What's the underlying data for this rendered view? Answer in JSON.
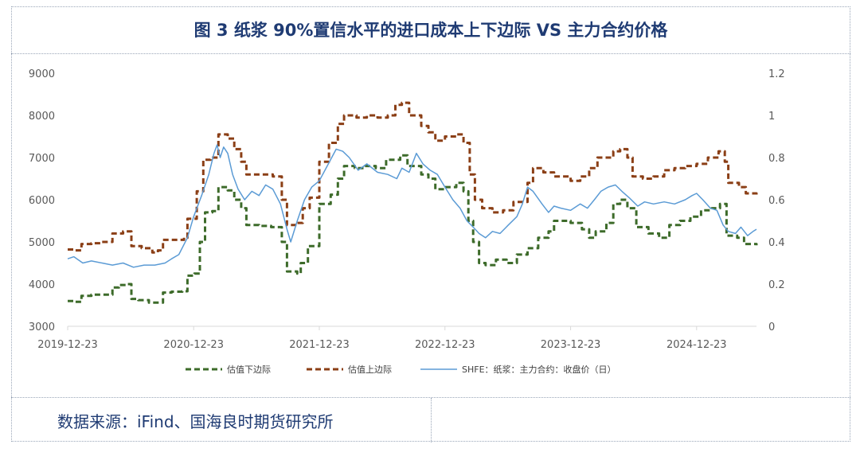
{
  "title": "图 3 纸浆 90%置信水平的进口成本上下边际 VS 主力合约价格",
  "source": "数据来源：iFind、国海良时期货研究所",
  "chart_data": {
    "type": "line",
    "x_tick_labels": [
      "2019-12-23",
      "2020-12-23",
      "2021-12-23",
      "2022-12-23",
      "2023-12-23",
      "2024-12-23"
    ],
    "x_range": [
      "2019-12-23",
      "2025-06-15"
    ],
    "y_left_ticks": [
      "3000",
      "4000",
      "5000",
      "6000",
      "7000",
      "8000",
      "9000"
    ],
    "y_left_range": [
      3000,
      9000
    ],
    "y_right_ticks": [
      "0",
      "0.2",
      "0.4",
      "0.6",
      "0.8",
      "1",
      "1.2"
    ],
    "y_right_range": [
      0,
      1.2
    ],
    "grid": false,
    "legend_position": "bottom",
    "series": [
      {
        "name": "估值下边际",
        "color": "#3d6b2a",
        "style": "dashed",
        "axis": "left",
        "points": [
          [
            "2019-12-23",
            3600
          ],
          [
            "2020-01-10",
            3580
          ],
          [
            "2020-02-01",
            3720
          ],
          [
            "2020-03-01",
            3750
          ],
          [
            "2020-04-01",
            3750
          ],
          [
            "2020-05-01",
            3920
          ],
          [
            "2020-05-20",
            3980
          ],
          [
            "2020-06-15",
            4000
          ],
          [
            "2020-06-25",
            3650
          ],
          [
            "2020-07-15",
            3620
          ],
          [
            "2020-08-15",
            3560
          ],
          [
            "2020-09-15",
            3560
          ],
          [
            "2020-09-25",
            3800
          ],
          [
            "2020-10-20",
            3820
          ],
          [
            "2020-11-20",
            3830
          ],
          [
            "2020-12-05",
            4200
          ],
          [
            "2020-12-25",
            4250
          ],
          [
            "2021-01-10",
            5000
          ],
          [
            "2021-01-25",
            5700
          ],
          [
            "2021-02-15",
            5730
          ],
          [
            "2021-03-05",
            6300
          ],
          [
            "2021-04-01",
            6220
          ],
          [
            "2021-04-20",
            6000
          ],
          [
            "2021-05-10",
            5800
          ],
          [
            "2021-05-25",
            5400
          ],
          [
            "2021-07-01",
            5380
          ],
          [
            "2021-08-05",
            5350
          ],
          [
            "2021-09-05",
            5000
          ],
          [
            "2021-09-20",
            4300
          ],
          [
            "2021-10-20",
            4250
          ],
          [
            "2021-10-30",
            4500
          ],
          [
            "2021-11-20",
            4900
          ],
          [
            "2021-12-23",
            5900
          ],
          [
            "2022-01-25",
            6120
          ],
          [
            "2022-02-15",
            6500
          ],
          [
            "2022-03-05",
            6800
          ],
          [
            "2022-04-05",
            6750
          ],
          [
            "2022-05-05",
            6800
          ],
          [
            "2022-06-05",
            6750
          ],
          [
            "2022-07-05",
            6950
          ],
          [
            "2022-08-15",
            7050
          ],
          [
            "2022-09-05",
            6800
          ],
          [
            "2022-10-15",
            6600
          ],
          [
            "2022-11-05",
            6500
          ],
          [
            "2022-11-25",
            6250
          ],
          [
            "2022-12-23",
            6300
          ],
          [
            "2023-01-25",
            6400
          ],
          [
            "2023-02-15",
            6200
          ],
          [
            "2023-03-01",
            5500
          ],
          [
            "2023-03-15",
            5000
          ],
          [
            "2023-04-01",
            4500
          ],
          [
            "2023-04-20",
            4450
          ],
          [
            "2023-05-20",
            4580
          ],
          [
            "2023-06-20",
            4500
          ],
          [
            "2023-07-20",
            4700
          ],
          [
            "2023-08-20",
            4850
          ],
          [
            "2023-09-20",
            5100
          ],
          [
            "2023-10-20",
            5250
          ],
          [
            "2023-11-05",
            5500
          ],
          [
            "2023-12-23",
            5450
          ],
          [
            "2024-01-25",
            5300
          ],
          [
            "2024-02-15",
            5100
          ],
          [
            "2024-03-05",
            5250
          ],
          [
            "2024-04-05",
            5450
          ],
          [
            "2024-04-25",
            5900
          ],
          [
            "2024-05-15",
            6000
          ],
          [
            "2024-06-05",
            5800
          ],
          [
            "2024-07-01",
            5350
          ],
          [
            "2024-08-05",
            5200
          ],
          [
            "2024-09-05",
            5100
          ],
          [
            "2024-10-05",
            5400
          ],
          [
            "2024-11-05",
            5500
          ],
          [
            "2024-12-05",
            5600
          ],
          [
            "2025-01-05",
            5750
          ],
          [
            "2025-02-05",
            5800
          ],
          [
            "2025-03-01",
            5900
          ],
          [
            "2025-03-20",
            5150
          ],
          [
            "2025-04-20",
            5100
          ],
          [
            "2025-05-10",
            4950
          ],
          [
            "2025-06-15",
            4920
          ]
        ]
      },
      {
        "name": "估值上边际",
        "color": "#8b3f16",
        "style": "dashed",
        "axis": "left",
        "points": [
          [
            "2019-12-23",
            4820
          ],
          [
            "2020-01-10",
            4800
          ],
          [
            "2020-02-01",
            4950
          ],
          [
            "2020-03-01",
            4970
          ],
          [
            "2020-04-01",
            5000
          ],
          [
            "2020-05-01",
            5200
          ],
          [
            "2020-06-01",
            5250
          ],
          [
            "2020-06-15",
            5250
          ],
          [
            "2020-06-25",
            4900
          ],
          [
            "2020-07-25",
            4850
          ],
          [
            "2020-08-25",
            4750
          ],
          [
            "2020-09-10",
            4800
          ],
          [
            "2020-09-25",
            5050
          ],
          [
            "2020-10-25",
            5050
          ],
          [
            "2020-11-25",
            5100
          ],
          [
            "2020-12-05",
            5550
          ],
          [
            "2021-01-01",
            6200
          ],
          [
            "2021-01-20",
            6950
          ],
          [
            "2021-02-10",
            7000
          ],
          [
            "2021-03-05",
            7550
          ],
          [
            "2021-04-01",
            7450
          ],
          [
            "2021-04-20",
            7200
          ],
          [
            "2021-05-10",
            6900
          ],
          [
            "2021-05-25",
            6600
          ],
          [
            "2021-07-01",
            6600
          ],
          [
            "2021-08-10",
            6550
          ],
          [
            "2021-09-05",
            6000
          ],
          [
            "2021-09-20",
            5400
          ],
          [
            "2021-10-20",
            5450
          ],
          [
            "2021-11-05",
            5800
          ],
          [
            "2021-11-25",
            6050
          ],
          [
            "2021-12-23",
            6900
          ],
          [
            "2022-01-20",
            7350
          ],
          [
            "2022-02-15",
            7800
          ],
          [
            "2022-03-05",
            8000
          ],
          [
            "2022-04-10",
            7950
          ],
          [
            "2022-05-10",
            8000
          ],
          [
            "2022-06-10",
            7950
          ],
          [
            "2022-07-10",
            8000
          ],
          [
            "2022-08-01",
            8250
          ],
          [
            "2022-08-20",
            8300
          ],
          [
            "2022-09-10",
            8000
          ],
          [
            "2022-10-15",
            7750
          ],
          [
            "2022-11-05",
            7600
          ],
          [
            "2022-11-25",
            7400
          ],
          [
            "2022-12-23",
            7500
          ],
          [
            "2023-01-25",
            7550
          ],
          [
            "2023-02-15",
            7350
          ],
          [
            "2023-03-05",
            6600
          ],
          [
            "2023-03-20",
            6000
          ],
          [
            "2023-04-10",
            5800
          ],
          [
            "2023-05-10",
            5700
          ],
          [
            "2023-06-10",
            5750
          ],
          [
            "2023-07-10",
            5950
          ],
          [
            "2023-08-20",
            6400
          ],
          [
            "2023-09-05",
            6750
          ],
          [
            "2023-10-05",
            6650
          ],
          [
            "2023-11-05",
            6550
          ],
          [
            "2023-12-23",
            6450
          ],
          [
            "2024-01-20",
            6550
          ],
          [
            "2024-02-15",
            6750
          ],
          [
            "2024-03-10",
            7000
          ],
          [
            "2024-04-05",
            7000
          ],
          [
            "2024-04-25",
            7150
          ],
          [
            "2024-05-15",
            7200
          ],
          [
            "2024-06-05",
            7000
          ],
          [
            "2024-06-20",
            6550
          ],
          [
            "2024-07-20",
            6500
          ],
          [
            "2024-08-20",
            6550
          ],
          [
            "2024-09-20",
            6700
          ],
          [
            "2024-10-20",
            6750
          ],
          [
            "2024-11-20",
            6800
          ],
          [
            "2024-12-23",
            6850
          ],
          [
            "2025-01-25",
            7000
          ],
          [
            "2025-02-25",
            7150
          ],
          [
            "2025-03-15",
            6900
          ],
          [
            "2025-03-25",
            6400
          ],
          [
            "2025-04-25",
            6300
          ],
          [
            "2025-05-15",
            6150
          ],
          [
            "2025-06-15",
            6120
          ]
        ]
      },
      {
        "name": "SHFE：纸浆：主力合约：收盘价（日）",
        "color": "#5b9bd5",
        "style": "solid",
        "axis": "right",
        "points": [
          [
            "2019-12-23",
            0.32
          ],
          [
            "2020-01-10",
            0.33
          ],
          [
            "2020-02-05",
            0.3
          ],
          [
            "2020-03-01",
            0.31
          ],
          [
            "2020-04-01",
            0.3
          ],
          [
            "2020-05-01",
            0.29
          ],
          [
            "2020-06-01",
            0.3
          ],
          [
            "2020-07-01",
            0.28
          ],
          [
            "2020-08-01",
            0.29
          ],
          [
            "2020-09-01",
            0.29
          ],
          [
            "2020-10-01",
            0.3
          ],
          [
            "2020-10-20",
            0.32
          ],
          [
            "2020-11-10",
            0.34
          ],
          [
            "2020-12-05",
            0.42
          ],
          [
            "2020-12-23",
            0.52
          ],
          [
            "2021-01-15",
            0.62
          ],
          [
            "2021-02-05",
            0.72
          ],
          [
            "2021-02-20",
            0.82
          ],
          [
            "2021-03-01",
            0.86
          ],
          [
            "2021-03-10",
            0.8
          ],
          [
            "2021-03-20",
            0.85
          ],
          [
            "2021-04-01",
            0.82
          ],
          [
            "2021-04-15",
            0.72
          ],
          [
            "2021-05-01",
            0.65
          ],
          [
            "2021-05-20",
            0.6
          ],
          [
            "2021-06-10",
            0.64
          ],
          [
            "2021-07-01",
            0.62
          ],
          [
            "2021-07-20",
            0.67
          ],
          [
            "2021-08-10",
            0.65
          ],
          [
            "2021-09-01",
            0.58
          ],
          [
            "2021-09-20",
            0.46
          ],
          [
            "2021-10-01",
            0.4
          ],
          [
            "2021-10-20",
            0.5
          ],
          [
            "2021-11-10",
            0.6
          ],
          [
            "2021-12-01",
            0.66
          ],
          [
            "2021-12-23",
            0.69
          ],
          [
            "2022-01-15",
            0.76
          ],
          [
            "2022-02-10",
            0.84
          ],
          [
            "2022-03-01",
            0.83
          ],
          [
            "2022-03-20",
            0.8
          ],
          [
            "2022-04-15",
            0.74
          ],
          [
            "2022-05-10",
            0.77
          ],
          [
            "2022-06-10",
            0.73
          ],
          [
            "2022-07-10",
            0.72
          ],
          [
            "2022-08-05",
            0.7
          ],
          [
            "2022-08-20",
            0.75
          ],
          [
            "2022-09-10",
            0.73
          ],
          [
            "2022-10-01",
            0.82
          ],
          [
            "2022-10-20",
            0.77
          ],
          [
            "2022-11-10",
            0.74
          ],
          [
            "2022-12-01",
            0.72
          ],
          [
            "2022-12-23",
            0.66
          ],
          [
            "2023-01-15",
            0.6
          ],
          [
            "2023-02-05",
            0.56
          ],
          [
            "2023-02-25",
            0.5
          ],
          [
            "2023-03-15",
            0.47
          ],
          [
            "2023-04-01",
            0.44
          ],
          [
            "2023-04-20",
            0.42
          ],
          [
            "2023-05-10",
            0.45
          ],
          [
            "2023-06-01",
            0.44
          ],
          [
            "2023-06-25",
            0.48
          ],
          [
            "2023-07-20",
            0.52
          ],
          [
            "2023-08-05",
            0.58
          ],
          [
            "2023-08-20",
            0.66
          ],
          [
            "2023-09-05",
            0.64
          ],
          [
            "2023-10-01",
            0.58
          ],
          [
            "2023-10-20",
            0.54
          ],
          [
            "2023-11-05",
            0.57
          ],
          [
            "2023-11-25",
            0.56
          ],
          [
            "2023-12-23",
            0.55
          ],
          [
            "2024-01-20",
            0.58
          ],
          [
            "2024-02-10",
            0.56
          ],
          [
            "2024-03-01",
            0.6
          ],
          [
            "2024-03-20",
            0.64
          ],
          [
            "2024-04-10",
            0.66
          ],
          [
            "2024-05-01",
            0.67
          ],
          [
            "2024-05-20",
            0.64
          ],
          [
            "2024-06-10",
            0.61
          ],
          [
            "2024-07-05",
            0.57
          ],
          [
            "2024-07-25",
            0.59
          ],
          [
            "2024-08-20",
            0.58
          ],
          [
            "2024-09-20",
            0.59
          ],
          [
            "2024-10-20",
            0.58
          ],
          [
            "2024-11-20",
            0.6
          ],
          [
            "2024-12-10",
            0.62
          ],
          [
            "2024-12-23",
            0.63
          ],
          [
            "2025-01-10",
            0.6
          ],
          [
            "2025-02-01",
            0.56
          ],
          [
            "2025-02-20",
            0.55
          ],
          [
            "2025-03-10",
            0.48
          ],
          [
            "2025-03-25",
            0.45
          ],
          [
            "2025-04-15",
            0.44
          ],
          [
            "2025-05-01",
            0.47
          ],
          [
            "2025-05-20",
            0.43
          ],
          [
            "2025-06-05",
            0.45
          ],
          [
            "2025-06-15",
            0.46
          ]
        ]
      }
    ]
  }
}
